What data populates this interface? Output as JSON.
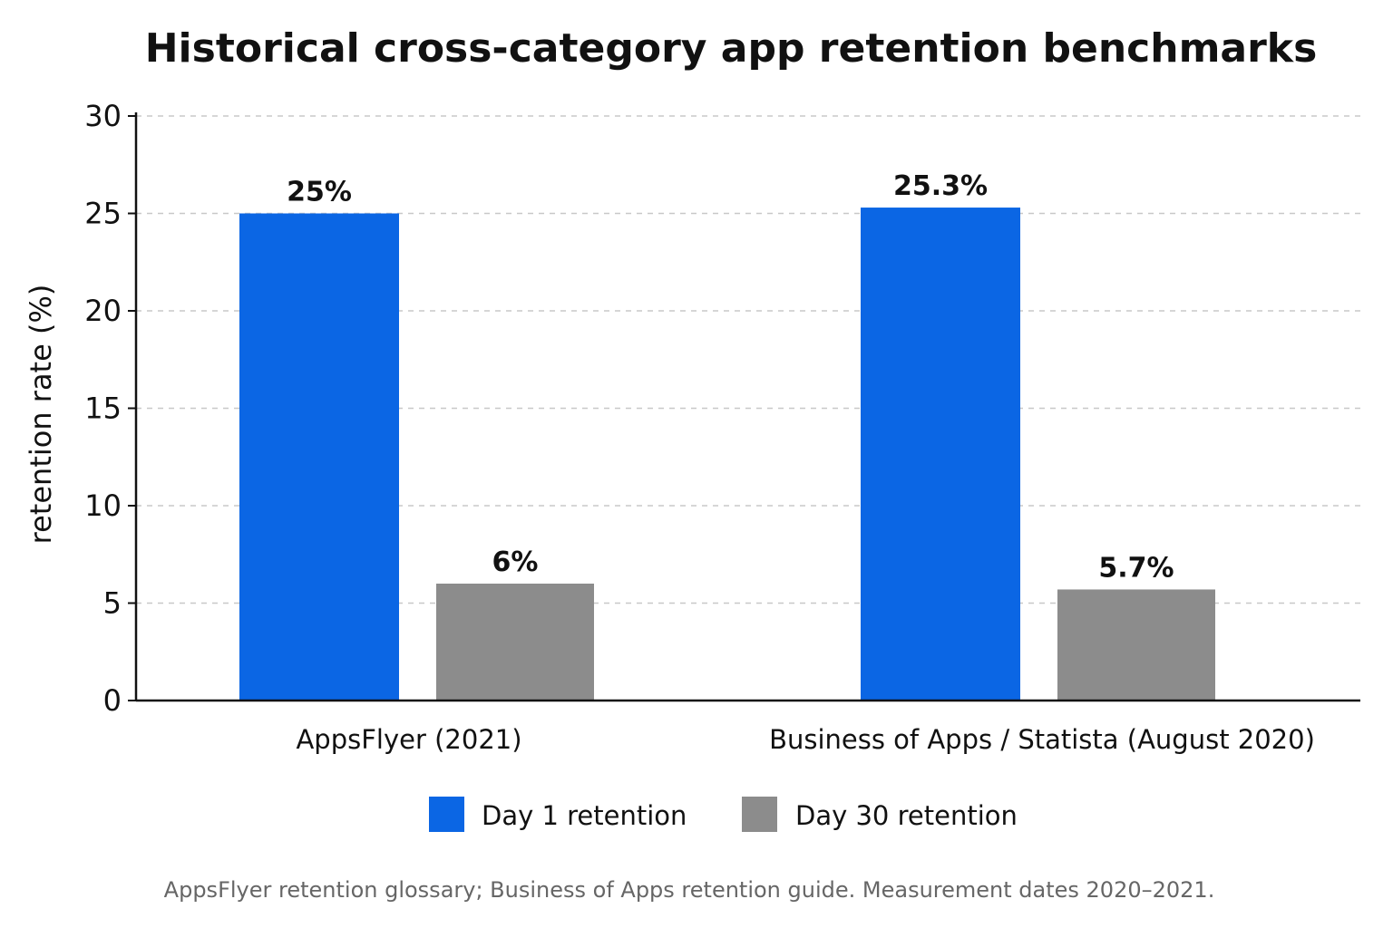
{
  "chart_data": {
    "type": "bar",
    "title": "Historical cross-category app retention benchmarks",
    "xlabel": "",
    "ylabel": "retention rate (%)",
    "ylim": [
      0,
      30
    ],
    "yticks": [
      "0",
      "5",
      "10",
      "15",
      "20",
      "25",
      "30"
    ],
    "grid": true,
    "legend_position": "bottom",
    "categories": [
      "AppsFlyer (2021)",
      "Business of Apps / Statista (August 2020)"
    ],
    "series": [
      {
        "name": "Day 1 retention",
        "color": "#0b66e4",
        "values": [
          25,
          25.3
        ],
        "labels": [
          "25%",
          "25.3%"
        ]
      },
      {
        "name": "Day 30 retention",
        "color": "#8c8c8c",
        "values": [
          6,
          5.7
        ],
        "labels": [
          "6%",
          "5.7%"
        ]
      }
    ],
    "source_note": "AppsFlyer retention glossary; Business of Apps retention guide. Measurement dates 2020–2021."
  }
}
